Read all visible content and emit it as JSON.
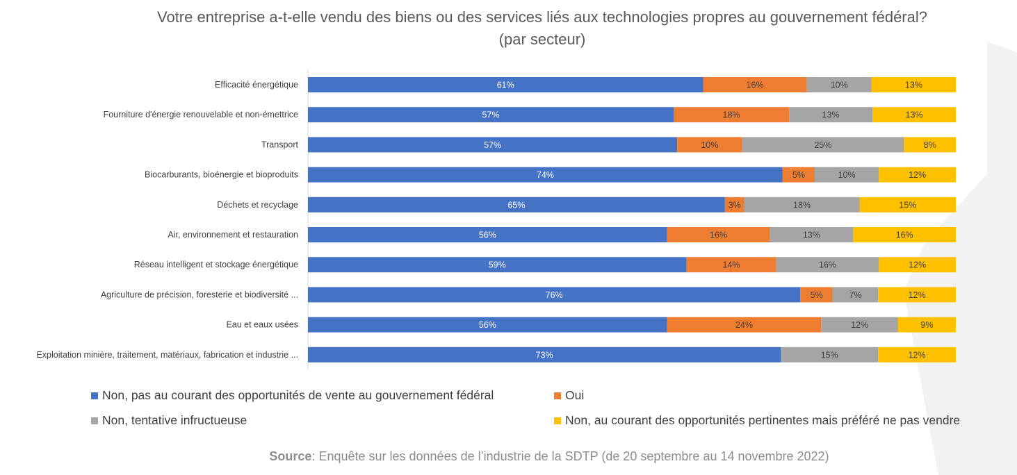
{
  "chart_data": {
    "type": "bar",
    "orientation": "horizontal",
    "stacked": true,
    "title": "Votre entreprise a-t-elle vendu des biens ou des services liés aux technologies propres au gouvernement fédéral?",
    "subtitle": "(par secteur)",
    "categories": [
      "Efficacité énergétique",
      "Fourniture d'énergie renouvelable et non-émettrice",
      "Transport",
      "Biocarburants, bioénergie et bioproduits",
      "Déchets et recyclage",
      "Air, environnement et restauration",
      "Réseau intelligent et stockage énergétique",
      "Agriculture de précision, foresterie et biodiversité ...",
      "Eau et eaux usées",
      "Exploitation minière, traitement, matériaux, fabrication et industrie ..."
    ],
    "series": [
      {
        "name": "Non, pas au courant des opportunités de vente au gouvernement fédéral",
        "color": "#4472c4",
        "label_color": "#ffffff",
        "values": [
          61,
          57,
          57,
          74,
          65,
          56,
          59,
          76,
          56,
          73
        ]
      },
      {
        "name": "Oui",
        "color": "#ed7d31",
        "label_color": "#404040",
        "values": [
          16,
          18,
          10,
          5,
          3,
          16,
          14,
          5,
          24,
          0
        ]
      },
      {
        "name": "Non, tentative infructueuse",
        "color": "#a5a5a5",
        "label_color": "#404040",
        "values": [
          10,
          13,
          25,
          10,
          18,
          13,
          16,
          7,
          12,
          15
        ]
      },
      {
        "name": "Non, au courant des opportunités pertinentes mais préféré ne pas vendre",
        "color": "#ffc000",
        "label_color": "#404040",
        "values": [
          13,
          13,
          8,
          12,
          15,
          16,
          12,
          12,
          9,
          12
        ]
      }
    ],
    "xlim": [
      0,
      100
    ],
    "grid": false,
    "legend_position": "bottom"
  },
  "source": {
    "label": "Source",
    "text": ": Enquête sur les données de l’industrie de la SDTP (de 20 septembre au 14 novembre 2022)"
  }
}
